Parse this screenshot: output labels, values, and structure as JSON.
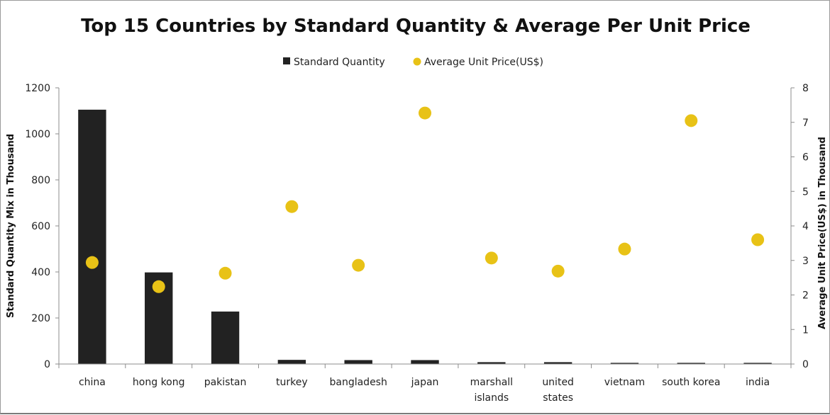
{
  "chart_data": {
    "type": "bar",
    "title": "Top 15 Countries by Standard Quantity & Average Per Unit Price",
    "categories": [
      [
        "china"
      ],
      [
        "hong kong"
      ],
      [
        "pakistan"
      ],
      [
        "turkey"
      ],
      [
        "bangladesh"
      ],
      [
        "japan"
      ],
      [
        "marshall",
        "islands"
      ],
      [
        "united",
        "states"
      ],
      [
        "vietnam"
      ],
      [
        "south korea"
      ],
      [
        "india"
      ]
    ],
    "series": [
      {
        "name": "Standard Quantity",
        "kind": "bar",
        "axis": "left",
        "color": "#222222",
        "values": [
          1105,
          398,
          228,
          18,
          17,
          17,
          8,
          8,
          5,
          5,
          5
        ]
      },
      {
        "name": "Average Unit Price(US$)",
        "kind": "scatter",
        "axis": "right",
        "color": "#e8c216",
        "values": [
          2.94,
          2.24,
          2.63,
          4.56,
          2.86,
          7.27,
          3.07,
          2.69,
          3.33,
          7.05,
          3.6
        ]
      }
    ],
    "ylabel": "Standard Quantity Mix in Thousand",
    "ylim": [
      0,
      1200
    ],
    "yticks": [
      "0",
      "200",
      "400",
      "600",
      "800",
      "1000",
      "1200"
    ],
    "y2label": "Average Unit Price(US$) in Thousand",
    "y2lim": [
      0,
      8
    ],
    "y2ticks": [
      "0",
      "1",
      "2",
      "3",
      "4",
      "5",
      "6",
      "7",
      "8"
    ],
    "grid": false,
    "legend_position": "top"
  }
}
